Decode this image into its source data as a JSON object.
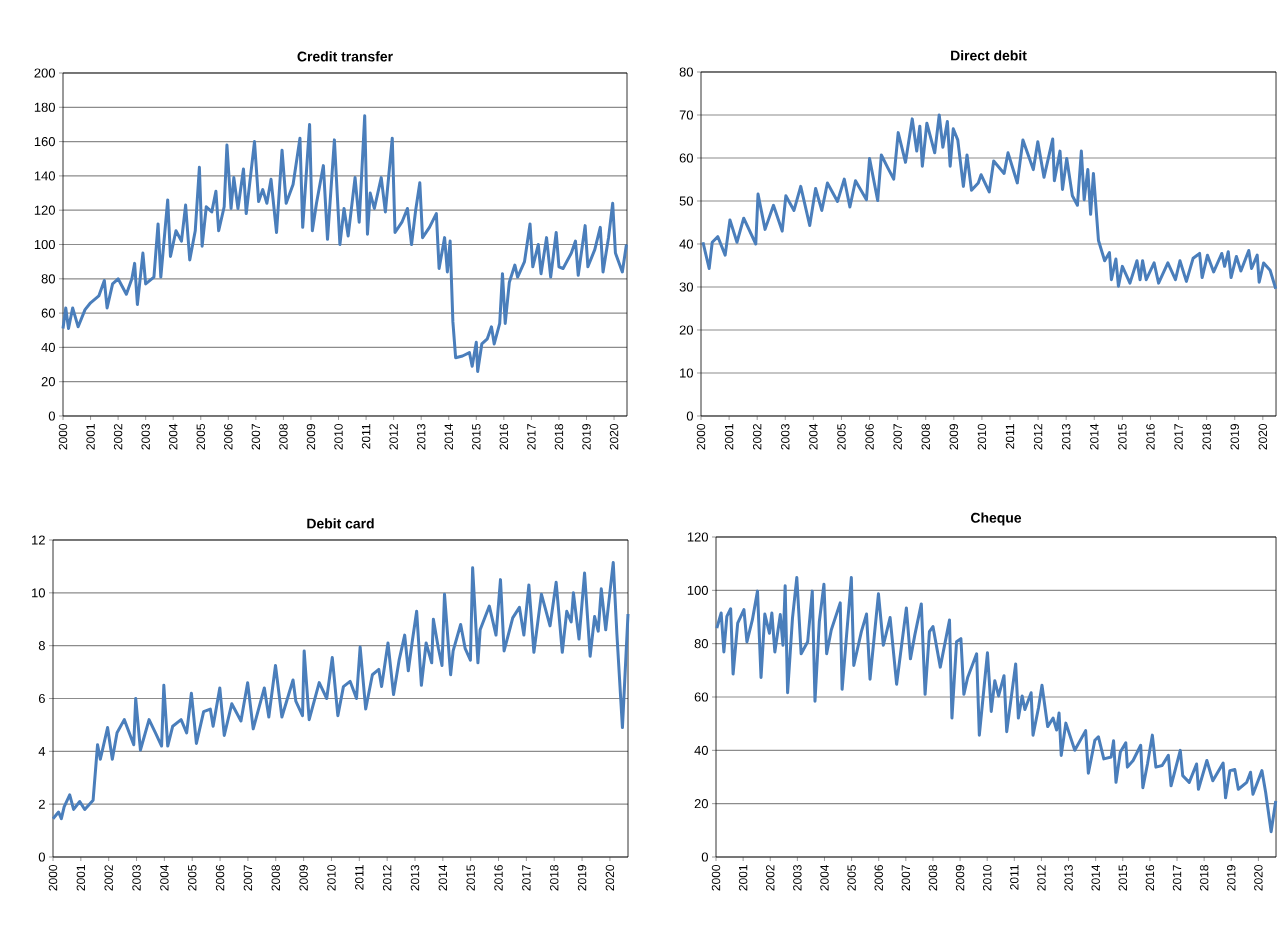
{
  "chart_data": [
    {
      "type": "line",
      "title": "Credit transfer",
      "color": "#4a7ebb",
      "grid": "y",
      "xlim": [
        2000,
        2020.47
      ],
      "ylim": [
        0,
        200
      ],
      "xticks": [
        2000,
        2001,
        2002,
        2003,
        2004,
        2005,
        2006,
        2007,
        2008,
        2009,
        2010,
        2011,
        2012,
        2013,
        2014,
        2015,
        2016,
        2017,
        2018,
        2019,
        2020
      ],
      "yticks": [
        0,
        20,
        40,
        60,
        80,
        100,
        120,
        140,
        160,
        180,
        200
      ],
      "x": [
        2000.0,
        2000.1,
        2000.2,
        2000.35,
        2000.55,
        2000.8,
        2001.0,
        2001.3,
        2001.5,
        2001.6,
        2001.8,
        2002.0,
        2002.3,
        2002.5,
        2002.6,
        2002.7,
        2002.9,
        2003.0,
        2003.3,
        2003.45,
        2003.55,
        2003.8,
        2003.9,
        2004.1,
        2004.3,
        2004.45,
        2004.6,
        2004.8,
        2004.95,
        2005.05,
        2005.2,
        2005.4,
        2005.55,
        2005.65,
        2005.85,
        2005.95,
        2006.1,
        2006.2,
        2006.35,
        2006.55,
        2006.65,
        2006.95,
        2007.1,
        2007.25,
        2007.4,
        2007.55,
        2007.75,
        2007.95,
        2008.1,
        2008.35,
        2008.6,
        2008.7,
        2008.95,
        2009.05,
        2009.2,
        2009.45,
        2009.6,
        2009.85,
        2010.05,
        2010.2,
        2010.35,
        2010.6,
        2010.75,
        2010.95,
        2011.05,
        2011.15,
        2011.3,
        2011.55,
        2011.7,
        2011.95,
        2012.05,
        2012.3,
        2012.5,
        2012.65,
        2012.8,
        2012.95,
        2013.05,
        2013.3,
        2013.55,
        2013.65,
        2013.85,
        2013.95,
        2014.05,
        2014.15,
        2014.25,
        2014.5,
        2014.75,
        2014.85,
        2015.0,
        2015.05,
        2015.2,
        2015.4,
        2015.55,
        2015.65,
        2015.85,
        2015.95,
        2016.05,
        2016.2,
        2016.4,
        2016.5,
        2016.75,
        2016.95,
        2017.05,
        2017.25,
        2017.35,
        2017.55,
        2017.7,
        2017.9,
        2018.0,
        2018.15,
        2018.45,
        2018.6,
        2018.7,
        2018.95,
        2019.05,
        2019.3,
        2019.5,
        2019.6,
        2019.8,
        2019.95,
        2020.05,
        2020.3,
        2020.45
      ],
      "values": [
        51,
        63,
        51,
        63,
        52,
        62,
        66,
        70,
        79,
        63,
        77,
        80,
        71,
        80,
        89,
        65,
        95,
        77,
        81,
        112,
        81,
        126,
        93,
        108,
        102,
        123,
        91,
        108,
        145,
        99,
        122,
        119,
        131,
        108,
        122,
        158,
        121,
        139,
        121,
        144,
        118,
        160,
        125,
        132,
        124,
        138,
        107,
        155,
        124,
        135,
        162,
        110,
        170,
        108,
        124,
        146,
        103,
        161,
        100,
        121,
        105,
        139,
        113,
        175,
        106,
        130,
        121,
        139,
        119,
        162,
        107,
        113,
        121,
        100,
        120,
        136,
        104,
        110,
        118,
        86,
        104,
        84,
        102,
        55,
        34,
        35,
        37,
        29,
        43,
        26,
        42,
        45,
        52,
        42,
        54,
        83,
        54,
        78,
        88,
        81,
        90,
        112,
        87,
        100,
        83,
        104,
        81,
        107,
        87,
        86,
        95,
        102,
        82,
        111,
        87,
        97,
        110,
        84,
        104,
        124,
        95,
        84,
        100
      ]
    },
    {
      "type": "line",
      "title": "Direct debit",
      "color": "#4a7ebb",
      "grid": "y",
      "xlim": [
        2000,
        2020.47
      ],
      "ylim": [
        0,
        80
      ],
      "xticks": [
        2000,
        2001,
        2002,
        2003,
        2004,
        2005,
        2006,
        2007,
        2008,
        2009,
        2010,
        2011,
        2012,
        2013,
        2014,
        2015,
        2016,
        2017,
        2018,
        2019,
        2020
      ],
      "yticks": [
        0,
        10,
        20,
        30,
        40,
        50,
        60,
        70,
        80
      ],
      "x": [
        2000.07,
        2000.29,
        2000.4,
        2000.6,
        2000.86,
        2001.03,
        2001.28,
        2001.52,
        2001.95,
        2002.03,
        2002.28,
        2002.58,
        2002.89,
        2003.02,
        2003.31,
        2003.55,
        2003.87,
        2004.08,
        2004.3,
        2004.5,
        2004.86,
        2005.1,
        2005.3,
        2005.5,
        2005.89,
        2006.0,
        2006.29,
        2006.42,
        2006.65,
        2006.86,
        2007.02,
        2007.28,
        2007.52,
        2007.68,
        2007.79,
        2007.88,
        2008.04,
        2008.32,
        2008.48,
        2008.61,
        2008.77,
        2008.87,
        2008.98,
        2009.14,
        2009.34,
        2009.47,
        2009.63,
        2009.87,
        2009.97,
        2010.26,
        2010.42,
        2010.79,
        2010.93,
        2011.26,
        2011.46,
        2011.83,
        2011.99,
        2012.21,
        2012.52,
        2012.58,
        2012.78,
        2012.87,
        2013.02,
        2013.22,
        2013.4,
        2013.54,
        2013.64,
        2013.77,
        2013.87,
        2013.97,
        2014.15,
        2014.37,
        2014.54,
        2014.61,
        2014.77,
        2014.86,
        2015.0,
        2015.27,
        2015.52,
        2015.63,
        2015.72,
        2015.85,
        2016.13,
        2016.29,
        2016.62,
        2016.89,
        2017.05,
        2017.28,
        2017.52,
        2017.75,
        2017.84,
        2018.03,
        2018.25,
        2018.54,
        2018.64,
        2018.77,
        2018.87,
        2019.06,
        2019.22,
        2019.5,
        2019.6,
        2019.8,
        2019.87,
        2020.03,
        2020.26,
        2020.46
      ],
      "values": [
        40.4,
        34.3,
        40.4,
        41.7,
        37.4,
        45.6,
        40.4,
        46,
        40,
        51.6,
        43.4,
        49,
        43,
        51.2,
        47.8,
        53.4,
        44.3,
        52.9,
        47.8,
        54.2,
        49.9,
        55.1,
        48.6,
        54.7,
        50.3,
        59.9,
        50.1,
        60.7,
        57.7,
        55.1,
        65.9,
        59,
        69.1,
        61.6,
        67.4,
        58.1,
        68.1,
        61.2,
        70,
        62.5,
        68.5,
        58.1,
        66.8,
        64.2,
        53.4,
        60.7,
        52.5,
        54.2,
        56.1,
        52.1,
        59.3,
        56.4,
        61.2,
        54.2,
        64.2,
        57.3,
        63.8,
        55.5,
        64.4,
        54.7,
        61.6,
        52.7,
        59.9,
        51.2,
        49,
        61.6,
        50.3,
        57.3,
        46.9,
        56.4,
        40.8,
        36.1,
        38,
        31.7,
        36.5,
        30.2,
        34.8,
        30.9,
        36.1,
        31.7,
        36.1,
        31.7,
        35.6,
        30.9,
        35.6,
        31.7,
        36.1,
        31.3,
        36.7,
        37.8,
        32.2,
        37.4,
        33.5,
        37.8,
        34.8,
        38.2,
        32.2,
        37.1,
        33.7,
        38.5,
        34.3,
        37.4,
        31.1,
        35.6,
        33.9,
        29.6
      ]
    },
    {
      "type": "line",
      "title": "Debit card",
      "color": "#4a7ebb",
      "grid": "y",
      "xlim": [
        2000,
        2020.65
      ],
      "ylim": [
        0,
        12
      ],
      "xticks": [
        2000,
        2001,
        2002,
        2003,
        2004,
        2005,
        2006,
        2007,
        2008,
        2009,
        2010,
        2011,
        2012,
        2013,
        2014,
        2015,
        2016,
        2017,
        2018,
        2019,
        2020
      ],
      "yticks": [
        0,
        2,
        4,
        6,
        8,
        10,
        12
      ],
      "x": [
        2000.0,
        2000.2,
        2000.3,
        2000.4,
        2000.6,
        2000.74,
        2000.96,
        2001.14,
        2001.44,
        2001.6,
        2001.7,
        2001.96,
        2002.13,
        2002.3,
        2002.56,
        2002.9,
        2002.97,
        2003.14,
        2003.45,
        2003.68,
        2003.9,
        2003.98,
        2004.12,
        2004.3,
        2004.6,
        2004.8,
        2004.97,
        2005.15,
        2005.41,
        2005.65,
        2005.75,
        2005.99,
        2006.15,
        2006.42,
        2006.75,
        2006.99,
        2007.19,
        2007.59,
        2007.75,
        2007.99,
        2008.22,
        2008.62,
        2008.72,
        2008.96,
        2009.02,
        2009.2,
        2009.56,
        2009.83,
        2010.03,
        2010.23,
        2010.43,
        2010.67,
        2010.9,
        2011.03,
        2011.23,
        2011.47,
        2011.7,
        2011.8,
        2012.03,
        2012.23,
        2012.43,
        2012.63,
        2012.76,
        2012.9,
        2013.06,
        2013.23,
        2013.4,
        2013.6,
        2013.66,
        2013.84,
        2013.97,
        2014.06,
        2014.28,
        2014.37,
        2014.64,
        2014.8,
        2014.99,
        2015.07,
        2015.26,
        2015.34,
        2015.67,
        2015.91,
        2016.07,
        2016.2,
        2016.51,
        2016.75,
        2016.91,
        2017.09,
        2017.27,
        2017.54,
        2017.85,
        2018.07,
        2018.29,
        2018.45,
        2018.61,
        2018.69,
        2018.89,
        2019.09,
        2019.29,
        2019.45,
        2019.58,
        2019.69,
        2019.85,
        2020.12,
        2020.25,
        2020.45,
        2020.65
      ],
      "values": [
        1.45,
        1.7,
        1.45,
        1.9,
        2.35,
        1.8,
        2.1,
        1.8,
        2.15,
        4.25,
        3.7,
        4.9,
        3.7,
        4.7,
        5.2,
        4.25,
        6.0,
        4.05,
        5.2,
        4.7,
        4.2,
        6.5,
        4.2,
        4.95,
        5.2,
        4.7,
        6.2,
        4.3,
        5.5,
        5.6,
        4.95,
        6.4,
        4.6,
        5.8,
        5.15,
        6.6,
        4.85,
        6.4,
        5.3,
        7.25,
        5.3,
        6.7,
        5.9,
        5.35,
        7.8,
        5.2,
        6.6,
        6.0,
        7.55,
        5.35,
        6.45,
        6.65,
        6.0,
        7.95,
        5.6,
        6.9,
        7.1,
        6.45,
        8.1,
        6.15,
        7.45,
        8.4,
        7.05,
        8.15,
        9.3,
        6.5,
        8.1,
        7.35,
        9.0,
        7.9,
        7.25,
        9.95,
        6.9,
        7.8,
        8.8,
        7.9,
        7.45,
        10.95,
        7.35,
        8.6,
        9.5,
        8.4,
        10.5,
        7.8,
        9.05,
        9.45,
        8.4,
        10.3,
        7.75,
        9.95,
        8.75,
        10.4,
        7.75,
        9.3,
        8.9,
        10.0,
        8.25,
        10.75,
        7.6,
        9.1,
        8.55,
        10.15,
        8.6,
        11.15,
        8.45,
        4.9,
        9.2
      ]
    },
    {
      "type": "line",
      "title": "Cheque",
      "color": "#4a7ebb",
      "grid": "y",
      "xlim": [
        2000,
        2020.65
      ],
      "ylim": [
        0,
        120
      ],
      "xticks": [
        2000,
        2001,
        2002,
        2003,
        2004,
        2005,
        2006,
        2007,
        2008,
        2009,
        2010,
        2011,
        2012,
        2013,
        2014,
        2015,
        2016,
        2017,
        2018,
        2019,
        2020
      ],
      "yticks": [
        0,
        20,
        40,
        60,
        80,
        100,
        120
      ],
      "x": [
        2000.03,
        2000.19,
        2000.29,
        2000.4,
        2000.54,
        2000.63,
        2000.8,
        2001.03,
        2001.14,
        2001.34,
        2001.53,
        2001.66,
        2001.8,
        2001.97,
        2002.06,
        2002.17,
        2002.37,
        2002.47,
        2002.55,
        2002.64,
        2002.82,
        2002.98,
        2003.14,
        2003.38,
        2003.55,
        2003.65,
        2003.81,
        2003.98,
        2004.08,
        2004.25,
        2004.58,
        2004.65,
        2004.99,
        2005.08,
        2005.36,
        2005.55,
        2005.68,
        2005.99,
        2006.17,
        2006.42,
        2006.66,
        2007.02,
        2007.17,
        2007.33,
        2007.57,
        2007.71,
        2007.87,
        2008.0,
        2008.27,
        2008.61,
        2008.7,
        2008.87,
        2009.03,
        2009.14,
        2009.28,
        2009.61,
        2009.71,
        2010.01,
        2010.15,
        2010.28,
        2010.42,
        2010.62,
        2010.72,
        2011.05,
        2011.15,
        2011.29,
        2011.39,
        2011.62,
        2011.69,
        2011.89,
        2012.02,
        2012.23,
        2012.43,
        2012.56,
        2012.65,
        2012.73,
        2012.9,
        2013.23,
        2013.63,
        2013.73,
        2013.97,
        2014.1,
        2014.3,
        2014.57,
        2014.66,
        2014.75,
        2014.91,
        2015.11,
        2015.17,
        2015.38,
        2015.66,
        2015.74,
        2015.91,
        2016.09,
        2016.22,
        2016.45,
        2016.68,
        2016.78,
        2017.12,
        2017.21,
        2017.45,
        2017.72,
        2017.79,
        2018.1,
        2018.32,
        2018.7,
        2018.79,
        2018.95,
        2019.13,
        2019.26,
        2019.57,
        2019.71,
        2019.8,
        2020.13,
        2020.27,
        2020.47,
        2020.64
      ],
      "values": [
        85.8,
        91.5,
        76.9,
        90.2,
        93.1,
        68.6,
        87.7,
        92.8,
        80.7,
        88.9,
        99.7,
        67.3,
        91.1,
        83.9,
        91.5,
        76.9,
        90.9,
        79.4,
        101.7,
        61.6,
        89.6,
        104.8,
        76.2,
        80.7,
        99.7,
        58.4,
        88.3,
        102.3,
        76.2,
        85.1,
        95.3,
        62.9,
        104.8,
        71.8,
        84.5,
        91.1,
        66.7,
        98.7,
        79.4,
        89.8,
        64.8,
        93.4,
        74.3,
        83.2,
        94.9,
        61,
        84.5,
        86.4,
        71.2,
        88.9,
        52.1,
        80.7,
        81.9,
        61,
        67.3,
        76.2,
        45.7,
        76.6,
        54.6,
        66.1,
        60.4,
        68,
        47,
        72.4,
        52.1,
        60.4,
        55.3,
        61.6,
        45.7,
        55.9,
        64.4,
        48.9,
        52.1,
        47.6,
        54,
        38.1,
        50.2,
        40,
        47.4,
        31.4,
        43.8,
        45.1,
        36.8,
        37.5,
        43.6,
        28,
        39.4,
        42.8,
        33.7,
        36.2,
        41.9,
        26,
        34.9,
        45.7,
        33.7,
        34.3,
        38.1,
        26.7,
        40,
        30.5,
        28,
        34.9,
        25.4,
        36.2,
        28.6,
        35.2,
        22.2,
        32.4,
        32.8,
        25.4,
        28,
        31.8,
        23.5,
        32.4,
        24.1,
        9.5,
        21
      ]
    }
  ]
}
